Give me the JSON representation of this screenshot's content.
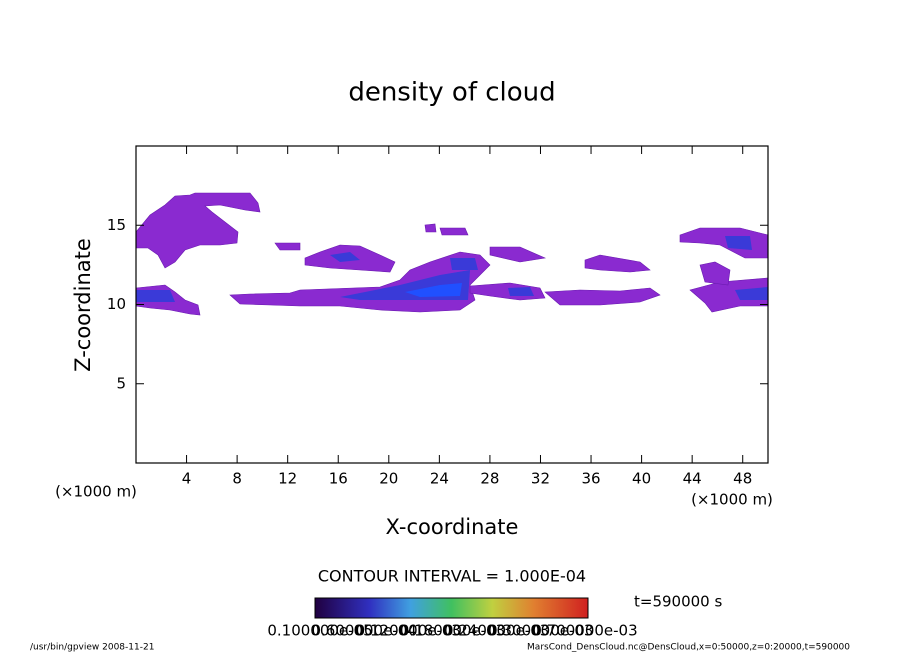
{
  "chart_data": {
    "type": "contour",
    "title": "density of cloud",
    "xlabel": "X-coordinate",
    "ylabel": "Z-coordinate",
    "xlabel_unit": "(×1000 m)",
    "ylabel_unit": "(×1000 m)",
    "xlim": [
      0,
      50
    ],
    "ylim": [
      0,
      20
    ],
    "xticks": [
      4,
      8,
      12,
      16,
      20,
      24,
      28,
      32,
      36,
      40,
      44,
      48
    ],
    "yticks": [
      5,
      10,
      15
    ],
    "contour_interval_text": "CONTOUR INTERVAL = 1.000E-04",
    "time_text": "t=590000 s",
    "colorbar_labels": [
      "0.100000e-05",
      "0.600000e-04",
      "0.120000e-03",
      "0.180000e-03",
      "0.240000e-03",
      "0.300000e-03",
      "0.700000e-03"
    ],
    "footer_left": "/usr/bin/gpview   2008-11-21",
    "footer_right": "MarsCond_DensCloud.nc@DensCloud,x=0:50000,z=0:20000,t=590000"
  }
}
